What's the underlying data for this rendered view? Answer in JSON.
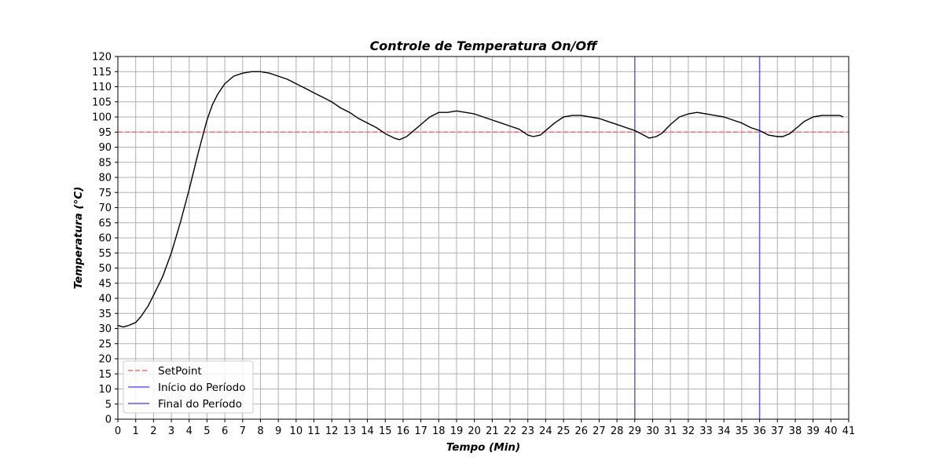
{
  "chart_data": {
    "type": "line",
    "title": "Controle de Temperatura On/Off",
    "xlabel": "Tempo (Min)",
    "ylabel": "Temperatura (°C)",
    "xlim": [
      0,
      41
    ],
    "ylim": [
      0,
      120
    ],
    "xticks": [
      0,
      1,
      2,
      3,
      4,
      5,
      6,
      7,
      8,
      9,
      10,
      11,
      12,
      13,
      14,
      15,
      16,
      17,
      18,
      19,
      20,
      21,
      22,
      23,
      24,
      25,
      26,
      27,
      28,
      29,
      30,
      31,
      32,
      33,
      34,
      35,
      36,
      37,
      38,
      39,
      40,
      41
    ],
    "yticks": [
      0,
      5,
      10,
      15,
      20,
      25,
      30,
      35,
      40,
      45,
      50,
      55,
      60,
      65,
      70,
      75,
      80,
      85,
      90,
      95,
      100,
      105,
      110,
      115,
      120
    ],
    "grid": true,
    "legend_position": "lower-left",
    "series": [
      {
        "name": "",
        "color": "#000000",
        "style": "solid",
        "x": [
          0,
          0.3,
          0.6,
          1,
          1.3,
          1.7,
          2,
          2.5,
          3,
          3.5,
          4,
          4.5,
          5,
          5.3,
          5.6,
          6,
          6.5,
          7,
          7.5,
          8,
          8.5,
          9,
          9.5,
          10,
          10.5,
          11,
          11.5,
          12,
          12.5,
          13,
          13.5,
          14,
          14.5,
          15,
          15.5,
          15.8,
          16.2,
          16.5,
          17,
          17.5,
          18,
          18.5,
          19,
          19.5,
          20,
          20.5,
          21,
          21.5,
          22,
          22.5,
          23,
          23.3,
          23.7,
          24,
          24.5,
          25,
          25.5,
          26,
          26.5,
          27,
          27.5,
          28,
          28.5,
          29,
          29.5,
          29.8,
          30.2,
          30.5,
          31,
          31.5,
          32,
          32.5,
          33,
          33.5,
          34,
          34.5,
          35,
          35.5,
          36,
          36.5,
          37,
          37.3,
          37.7,
          38,
          38.5,
          39,
          39.5,
          40,
          40.5,
          40.7
        ],
        "y": [
          31,
          30.5,
          31,
          32,
          34,
          37.5,
          41,
          47,
          55,
          65,
          76,
          88,
          99,
          104,
          107.5,
          111,
          113.5,
          114.5,
          115,
          115,
          114.5,
          113.5,
          112.5,
          111,
          109.5,
          108,
          106.5,
          105,
          103,
          101.5,
          99.5,
          98,
          96.5,
          94.5,
          93,
          92.5,
          93.5,
          95,
          97.5,
          100,
          101.5,
          101.5,
          102,
          101.5,
          101,
          100,
          99,
          98,
          97,
          96,
          94,
          93.5,
          94,
          95.5,
          98,
          100,
          100.5,
          100.5,
          100,
          99.5,
          98.5,
          97.5,
          96.5,
          95.5,
          94,
          93,
          93.5,
          94.5,
          97.5,
          100,
          101,
          101.5,
          101,
          100.5,
          100,
          99,
          98,
          96.5,
          95.5,
          94,
          93.5,
          93.5,
          94.5,
          96,
          98.5,
          100,
          100.5,
          100.5,
          100.5,
          100
        ]
      }
    ],
    "setpoint": {
      "name": "SetPoint",
      "y": 95,
      "color": "#ff6b6b",
      "style": "dashed"
    },
    "vlines": [
      {
        "name": "Início do Período",
        "x": 29,
        "color": "#5a5aff"
      },
      {
        "name": "Final do Período",
        "x": 36,
        "color": "#5a5aff"
      }
    ]
  }
}
